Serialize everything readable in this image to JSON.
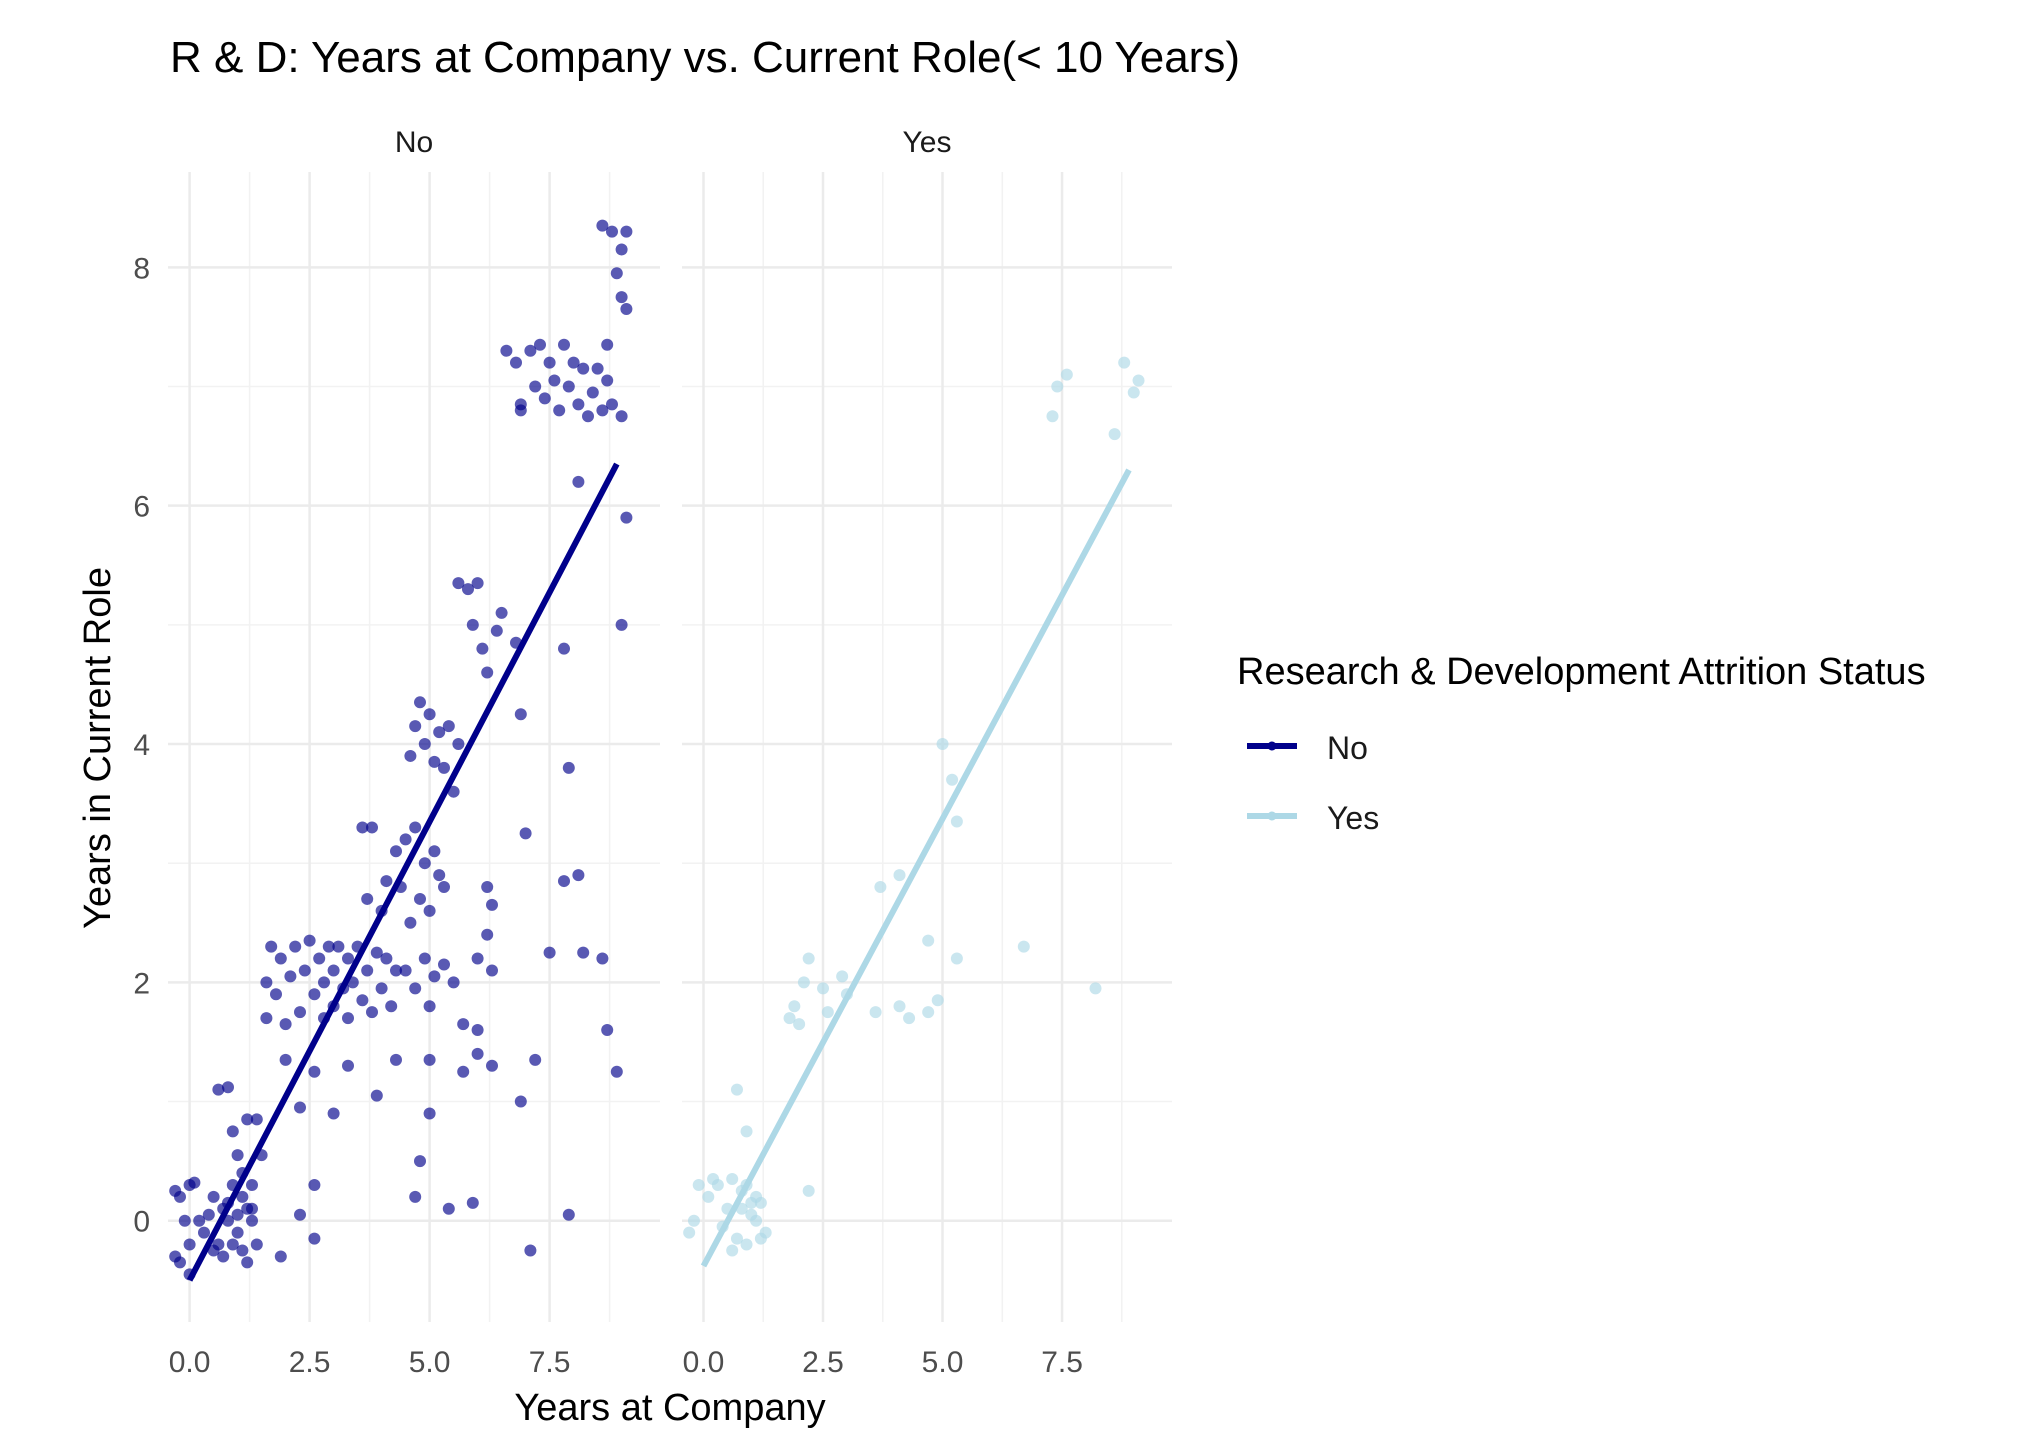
{
  "chart_data": {
    "type": "scatter",
    "title": "R & D: Years at Company vs. Current Role(< 10 Years)",
    "xlabel": "Years at Company",
    "ylabel": "Years in Current Role",
    "facets": [
      "No",
      "Yes"
    ],
    "xlim": [
      -0.45,
      9.8
    ],
    "ylim": [
      -0.85,
      8.8
    ],
    "x_ticks": [
      "0.0",
      "2.5",
      "5.0",
      "7.5"
    ],
    "x_tick_values": [
      0,
      2.5,
      5,
      7.5
    ],
    "y_ticks": [
      "0",
      "2",
      "4",
      "6",
      "8"
    ],
    "y_tick_values": [
      0,
      2,
      4,
      6,
      8
    ],
    "grid": true,
    "legend": {
      "title": "Research & Development Attrition Status",
      "placement": "right",
      "entries": [
        "No",
        "Yes"
      ]
    },
    "colors": {
      "No": "#00008B",
      "Yes": "#ADD8E6"
    },
    "series": [
      {
        "name": "No",
        "facet": "No",
        "trend_line": {
          "x": [
            0,
            8.9
          ],
          "y": [
            -0.5,
            6.35
          ]
        },
        "points": [
          [
            -0.3,
            0.25
          ],
          [
            -0.2,
            -0.35
          ],
          [
            -0.3,
            -0.3
          ],
          [
            -0.2,
            0.2
          ],
          [
            -0.1,
            0.0
          ],
          [
            0.0,
            0.3
          ],
          [
            0.1,
            0.32
          ],
          [
            0.0,
            -0.2
          ],
          [
            0.0,
            -0.45
          ],
          [
            0.2,
            0.0
          ],
          [
            0.3,
            -0.1
          ],
          [
            0.4,
            0.05
          ],
          [
            0.5,
            -0.25
          ],
          [
            0.5,
            0.2
          ],
          [
            0.6,
            -0.2
          ],
          [
            0.7,
            0.1
          ],
          [
            0.7,
            -0.3
          ],
          [
            0.8,
            0.15
          ],
          [
            0.8,
            0.0
          ],
          [
            0.9,
            -0.2
          ],
          [
            0.9,
            0.3
          ],
          [
            1.0,
            -0.1
          ],
          [
            1.0,
            0.05
          ],
          [
            1.1,
            0.2
          ],
          [
            1.1,
            -0.25
          ],
          [
            1.2,
            0.1
          ],
          [
            1.2,
            -0.35
          ],
          [
            1.3,
            0.0
          ],
          [
            1.3,
            0.1
          ],
          [
            1.4,
            -0.2
          ],
          [
            0.6,
            1.1
          ],
          [
            0.8,
            1.12
          ],
          [
            0.9,
            0.75
          ],
          [
            1.2,
            0.85
          ],
          [
            1.4,
            0.85
          ],
          [
            1.0,
            0.55
          ],
          [
            1.1,
            0.4
          ],
          [
            1.3,
            0.3
          ],
          [
            1.5,
            0.55
          ],
          [
            1.9,
            -0.3
          ],
          [
            1.6,
            1.7
          ],
          [
            1.6,
            2.0
          ],
          [
            1.7,
            2.3
          ],
          [
            1.8,
            1.9
          ],
          [
            1.9,
            2.2
          ],
          [
            2.0,
            1.65
          ],
          [
            2.1,
            2.05
          ],
          [
            2.2,
            2.3
          ],
          [
            2.3,
            1.75
          ],
          [
            2.4,
            2.1
          ],
          [
            2.5,
            2.35
          ],
          [
            2.6,
            1.9
          ],
          [
            2.7,
            2.2
          ],
          [
            2.8,
            1.7
          ],
          [
            2.8,
            2.0
          ],
          [
            2.9,
            2.3
          ],
          [
            3.0,
            1.8
          ],
          [
            3.0,
            2.1
          ],
          [
            3.1,
            2.3
          ],
          [
            3.2,
            1.95
          ],
          [
            3.3,
            2.2
          ],
          [
            3.3,
            1.7
          ],
          [
            3.4,
            2.0
          ],
          [
            3.5,
            2.3
          ],
          [
            3.6,
            1.85
          ],
          [
            3.7,
            2.1
          ],
          [
            3.8,
            1.75
          ],
          [
            3.9,
            2.25
          ],
          [
            4.0,
            1.95
          ],
          [
            4.1,
            2.2
          ],
          [
            4.2,
            1.8
          ],
          [
            4.3,
            2.1
          ],
          [
            2.0,
            1.35
          ],
          [
            2.3,
            0.95
          ],
          [
            2.6,
            1.25
          ],
          [
            3.0,
            0.9
          ],
          [
            3.3,
            1.3
          ],
          [
            3.9,
            1.05
          ],
          [
            4.3,
            1.35
          ],
          [
            2.6,
            0.3
          ],
          [
            2.3,
            0.05
          ],
          [
            2.6,
            -0.15
          ],
          [
            3.6,
            3.3
          ],
          [
            3.7,
            2.7
          ],
          [
            3.8,
            3.3
          ],
          [
            4.0,
            2.6
          ],
          [
            4.1,
            2.85
          ],
          [
            4.3,
            3.1
          ],
          [
            4.4,
            2.8
          ],
          [
            4.5,
            3.2
          ],
          [
            4.6,
            2.5
          ],
          [
            4.7,
            3.3
          ],
          [
            4.8,
            2.7
          ],
          [
            4.9,
            3.0
          ],
          [
            5.0,
            2.6
          ],
          [
            5.1,
            3.1
          ],
          [
            5.2,
            2.9
          ],
          [
            5.3,
            2.8
          ],
          [
            4.6,
            3.9
          ],
          [
            4.7,
            4.15
          ],
          [
            4.8,
            4.35
          ],
          [
            4.9,
            4.0
          ],
          [
            5.0,
            4.25
          ],
          [
            5.1,
            3.85
          ],
          [
            5.2,
            4.1
          ],
          [
            5.3,
            3.8
          ],
          [
            5.4,
            4.15
          ],
          [
            5.5,
            3.6
          ],
          [
            5.6,
            4.0
          ],
          [
            4.5,
            2.1
          ],
          [
            4.7,
            1.95
          ],
          [
            4.9,
            2.2
          ],
          [
            5.0,
            1.8
          ],
          [
            5.1,
            2.05
          ],
          [
            5.3,
            2.15
          ],
          [
            5.5,
            2.0
          ],
          [
            5.7,
            1.65
          ],
          [
            6.0,
            2.2
          ],
          [
            6.2,
            2.4
          ],
          [
            6.3,
            2.1
          ],
          [
            6.0,
            1.6
          ],
          [
            6.2,
            2.8
          ],
          [
            6.3,
            2.65
          ],
          [
            5.7,
            1.25
          ],
          [
            6.0,
            1.4
          ],
          [
            6.3,
            1.3
          ],
          [
            5.9,
            0.15
          ],
          [
            5.4,
            0.1
          ],
          [
            5.0,
            0.9
          ],
          [
            4.8,
            0.5
          ],
          [
            4.7,
            0.2
          ],
          [
            5.0,
            1.35
          ],
          [
            5.6,
            5.35
          ],
          [
            5.8,
            5.3
          ],
          [
            5.9,
            5.0
          ],
          [
            6.0,
            5.35
          ],
          [
            6.1,
            4.8
          ],
          [
            6.2,
            4.6
          ],
          [
            6.4,
            4.95
          ],
          [
            6.5,
            5.1
          ],
          [
            6.8,
            4.85
          ],
          [
            6.9,
            4.25
          ],
          [
            7.0,
            3.25
          ],
          [
            7.5,
            2.25
          ],
          [
            7.2,
            1.35
          ],
          [
            6.9,
            1.0
          ],
          [
            7.1,
            -0.25
          ],
          [
            7.8,
            2.85
          ],
          [
            7.9,
            3.8
          ],
          [
            8.1,
            2.9
          ],
          [
            8.2,
            2.25
          ],
          [
            8.6,
            2.2
          ],
          [
            8.7,
            1.6
          ],
          [
            8.9,
            1.25
          ],
          [
            7.9,
            0.05
          ],
          [
            7.8,
            4.8
          ],
          [
            6.6,
            7.3
          ],
          [
            6.8,
            7.2
          ],
          [
            6.9,
            6.8
          ],
          [
            7.1,
            7.3
          ],
          [
            7.2,
            7.0
          ],
          [
            7.3,
            7.35
          ],
          [
            7.4,
            6.9
          ],
          [
            7.5,
            7.2
          ],
          [
            7.6,
            7.05
          ],
          [
            7.7,
            6.8
          ],
          [
            7.8,
            7.35
          ],
          [
            7.9,
            7.0
          ],
          [
            8.0,
            7.2
          ],
          [
            8.1,
            6.85
          ],
          [
            8.2,
            7.15
          ],
          [
            8.3,
            6.75
          ],
          [
            8.4,
            6.95
          ],
          [
            8.5,
            7.15
          ],
          [
            8.6,
            6.8
          ],
          [
            8.7,
            7.05
          ],
          [
            8.8,
            6.85
          ],
          [
            9.0,
            6.75
          ],
          [
            8.6,
            8.35
          ],
          [
            8.8,
            8.3
          ],
          [
            9.0,
            8.15
          ],
          [
            9.1,
            8.3
          ],
          [
            8.9,
            7.95
          ],
          [
            9.0,
            7.75
          ],
          [
            9.1,
            7.65
          ],
          [
            8.7,
            7.35
          ],
          [
            9.1,
            5.9
          ],
          [
            9.0,
            5.0
          ],
          [
            8.1,
            6.2
          ],
          [
            6.9,
            6.85
          ]
        ]
      },
      {
        "name": "Yes",
        "facet": "Yes",
        "trend_line": {
          "x": [
            0,
            8.9
          ],
          "y": [
            -0.38,
            6.3
          ]
        },
        "points": [
          [
            -0.3,
            -0.1
          ],
          [
            -0.2,
            0.0
          ],
          [
            -0.1,
            0.3
          ],
          [
            0.1,
            0.2
          ],
          [
            0.2,
            0.35
          ],
          [
            0.3,
            0.3
          ],
          [
            0.4,
            -0.05
          ],
          [
            0.5,
            0.1
          ],
          [
            0.6,
            0.35
          ],
          [
            0.6,
            -0.25
          ],
          [
            0.7,
            -0.15
          ],
          [
            0.8,
            0.1
          ],
          [
            0.8,
            0.25
          ],
          [
            0.9,
            -0.2
          ],
          [
            0.9,
            0.3
          ],
          [
            1.0,
            0.05
          ],
          [
            1.0,
            0.15
          ],
          [
            1.1,
            0.0
          ],
          [
            1.1,
            0.2
          ],
          [
            1.2,
            -0.15
          ],
          [
            1.2,
            0.15
          ],
          [
            1.3,
            -0.1
          ],
          [
            0.7,
            1.1
          ],
          [
            0.9,
            0.75
          ],
          [
            2.2,
            0.25
          ],
          [
            1.8,
            1.7
          ],
          [
            1.9,
            1.8
          ],
          [
            2.0,
            1.65
          ],
          [
            2.1,
            2.0
          ],
          [
            2.2,
            2.2
          ],
          [
            2.5,
            1.95
          ],
          [
            2.6,
            1.75
          ],
          [
            2.9,
            2.05
          ],
          [
            3.0,
            1.9
          ],
          [
            3.6,
            1.75
          ],
          [
            3.7,
            2.8
          ],
          [
            4.1,
            2.9
          ],
          [
            4.1,
            1.8
          ],
          [
            4.3,
            1.7
          ],
          [
            4.7,
            1.75
          ],
          [
            4.7,
            2.35
          ],
          [
            4.9,
            1.85
          ],
          [
            5.0,
            4.0
          ],
          [
            5.2,
            3.7
          ],
          [
            5.3,
            3.35
          ],
          [
            5.3,
            2.2
          ],
          [
            6.7,
            2.3
          ],
          [
            8.2,
            1.95
          ],
          [
            7.3,
            6.75
          ],
          [
            7.4,
            7.0
          ],
          [
            7.6,
            7.1
          ],
          [
            8.6,
            6.6
          ],
          [
            8.8,
            7.2
          ],
          [
            9.0,
            6.95
          ],
          [
            9.1,
            7.05
          ]
        ]
      }
    ]
  }
}
